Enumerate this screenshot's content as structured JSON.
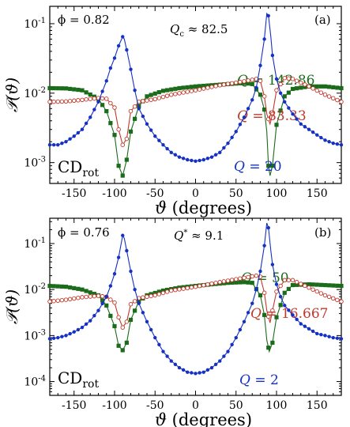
{
  "chart_data": [
    {
      "type": "line",
      "panel_label": "(a)",
      "annotations": {
        "phi": "ϕ = 0.82",
        "q_critical": "Q_c ≈ 82.5",
        "method": "CD_rot"
      },
      "xlabel": "ϑ (degrees)",
      "ylabel": "𝒫(ϑ)",
      "x_ticks": [
        "-150",
        "-100",
        "-50",
        "0",
        "50",
        "100",
        "150"
      ],
      "y_scale": "log",
      "y_tick_labels": [
        {
          "base": "10",
          "exp": "-3"
        },
        {
          "base": "10",
          "exp": "-2"
        },
        {
          "base": "10",
          "exp": "-1"
        }
      ],
      "xlim": [
        -180,
        180
      ],
      "ylim_log10": [
        -3.3,
        -0.75
      ],
      "grid": false,
      "series": [
        {
          "name": "Q = 142.86",
          "color": "#1a6b1a",
          "marker": "square",
          "points": [
            [
              -180,
              0.0118
            ],
            [
              -160,
              0.0117
            ],
            [
              -140,
              0.011
            ],
            [
              -120,
              0.0083
            ],
            [
              -110,
              0.0055
            ],
            [
              -100,
              0.0025
            ],
            [
              -95,
              0.0009
            ],
            [
              -90,
              0.00065
            ],
            [
              -85,
              0.0011
            ],
            [
              -80,
              0.0028
            ],
            [
              -70,
              0.0065
            ],
            [
              -60,
              0.009
            ],
            [
              -40,
              0.0108
            ],
            [
              -20,
              0.0118
            ],
            [
              0,
              0.0125
            ],
            [
              20,
              0.013
            ],
            [
              40,
              0.0135
            ],
            [
              60,
              0.014
            ],
            [
              70,
              0.0135
            ],
            [
              80,
              0.0095
            ],
            [
              85,
              0.0058
            ],
            [
              88,
              0.0028
            ],
            [
              90,
              0.0009
            ],
            [
              92,
              0.00065
            ],
            [
              95,
              0.0009
            ],
            [
              100,
              0.0035
            ],
            [
              110,
              0.009
            ],
            [
              120,
              0.0115
            ],
            [
              140,
              0.0125
            ],
            [
              160,
              0.0125
            ],
            [
              180,
              0.0118
            ]
          ]
        },
        {
          "name": "Q = 83.33",
          "color": "#c0392b",
          "marker": "circle",
          "points": [
            [
              -180,
              0.0075
            ],
            [
              -160,
              0.0076
            ],
            [
              -140,
              0.008
            ],
            [
              -120,
              0.0085
            ],
            [
              -110,
              0.0083
            ],
            [
              -100,
              0.0062
            ],
            [
              -95,
              0.003
            ],
            [
              -90,
              0.0018
            ],
            [
              -85,
              0.0022
            ],
            [
              -80,
              0.0055
            ],
            [
              -70,
              0.0075
            ],
            [
              -50,
              0.0082
            ],
            [
              -30,
              0.0095
            ],
            [
              0,
              0.011
            ],
            [
              30,
              0.013
            ],
            [
              60,
              0.0148
            ],
            [
              75,
              0.016
            ],
            [
              80,
              0.015
            ],
            [
              85,
              0.009
            ],
            [
              88,
              0.005
            ],
            [
              92,
              0.0036
            ],
            [
              95,
              0.005
            ],
            [
              100,
              0.011
            ],
            [
              110,
              0.0165
            ],
            [
              120,
              0.016
            ],
            [
              140,
              0.0125
            ],
            [
              160,
              0.0095
            ],
            [
              180,
              0.0075
            ]
          ]
        },
        {
          "name": "Q = 20",
          "color": "#1530c4",
          "marker": "circle",
          "points": [
            [
              -180,
              0.0018
            ],
            [
              -170,
              0.0018
            ],
            [
              -160,
              0.002
            ],
            [
              -150,
              0.0024
            ],
            [
              -140,
              0.003
            ],
            [
              -130,
              0.0045
            ],
            [
              -120,
              0.0075
            ],
            [
              -110,
              0.015
            ],
            [
              -105,
              0.023
            ],
            [
              -100,
              0.032
            ],
            [
              -95,
              0.048
            ],
            [
              -90,
              0.065
            ],
            [
              -88,
              0.06
            ],
            [
              -85,
              0.042
            ],
            [
              -80,
              0.022
            ],
            [
              -75,
              0.011
            ],
            [
              -70,
              0.006
            ],
            [
              -60,
              0.0036
            ],
            [
              -50,
              0.0024
            ],
            [
              -40,
              0.0018
            ],
            [
              -30,
              0.0014
            ],
            [
              -20,
              0.0012
            ],
            [
              -10,
              0.0011
            ],
            [
              0,
              0.00105
            ],
            [
              10,
              0.0011
            ],
            [
              20,
              0.0012
            ],
            [
              30,
              0.0014
            ],
            [
              40,
              0.0019
            ],
            [
              50,
              0.0028
            ],
            [
              60,
              0.0045
            ],
            [
              70,
              0.008
            ],
            [
              75,
              0.012
            ],
            [
              80,
              0.025
            ],
            [
              85,
              0.06
            ],
            [
              88,
              0.14
            ],
            [
              90,
              0.13
            ],
            [
              93,
              0.065
            ],
            [
              95,
              0.035
            ],
            [
              100,
              0.016
            ],
            [
              105,
              0.01
            ],
            [
              110,
              0.0075
            ],
            [
              120,
              0.005
            ],
            [
              130,
              0.0036
            ],
            [
              140,
              0.003
            ],
            [
              150,
              0.0025
            ],
            [
              160,
              0.0021
            ],
            [
              170,
              0.0019
            ],
            [
              180,
              0.0018
            ]
          ]
        }
      ]
    },
    {
      "type": "line",
      "panel_label": "(b)",
      "annotations": {
        "phi": "ϕ = 0.76",
        "q_star": "Q* ≈ 9.1",
        "method": "CD_rot"
      },
      "xlabel": "ϑ (degrees)",
      "ylabel": "𝒫(ϑ)",
      "x_ticks": [
        "-150",
        "-100",
        "-50",
        "0",
        "50",
        "100",
        "150"
      ],
      "y_scale": "log",
      "y_tick_labels": [
        {
          "base": "10",
          "exp": "-4"
        },
        {
          "base": "10",
          "exp": "-3"
        },
        {
          "base": "10",
          "exp": "-2"
        },
        {
          "base": "10",
          "exp": "-1"
        }
      ],
      "xlim": [
        -180,
        180
      ],
      "ylim_log10": [
        -4.3,
        -0.45
      ],
      "grid": false,
      "series": [
        {
          "name": "Q = 50",
          "color": "#1a6b1a",
          "marker": "square",
          "points": [
            [
              -180,
              0.012
            ],
            [
              -160,
              0.0115
            ],
            [
              -140,
              0.01
            ],
            [
              -120,
              0.0075
            ],
            [
              -110,
              0.0045
            ],
            [
              -100,
              0.0016
            ],
            [
              -95,
              0.0006
            ],
            [
              -90,
              0.00048
            ],
            [
              -85,
              0.0007
            ],
            [
              -80,
              0.0022
            ],
            [
              -70,
              0.0055
            ],
            [
              -60,
              0.0075
            ],
            [
              -40,
              0.0095
            ],
            [
              -20,
              0.011
            ],
            [
              0,
              0.012
            ],
            [
              20,
              0.013
            ],
            [
              40,
              0.014
            ],
            [
              60,
              0.0145
            ],
            [
              70,
              0.014
            ],
            [
              80,
              0.0075
            ],
            [
              85,
              0.0028
            ],
            [
              88,
              0.0008
            ],
            [
              91,
              0.00045
            ],
            [
              95,
              0.0007
            ],
            [
              100,
              0.0025
            ],
            [
              110,
              0.0085
            ],
            [
              120,
              0.0125
            ],
            [
              140,
              0.013
            ],
            [
              160,
              0.0125
            ],
            [
              180,
              0.012
            ]
          ]
        },
        {
          "name": "Q = 16.667",
          "color": "#c0392b",
          "marker": "circle",
          "points": [
            [
              -180,
              0.0055
            ],
            [
              -160,
              0.006
            ],
            [
              -140,
              0.0068
            ],
            [
              -120,
              0.0073
            ],
            [
              -110,
              0.007
            ],
            [
              -100,
              0.0052
            ],
            [
              -95,
              0.0025
            ],
            [
              -90,
              0.0015
            ],
            [
              -85,
              0.002
            ],
            [
              -80,
              0.0048
            ],
            [
              -70,
              0.0065
            ],
            [
              -50,
              0.0075
            ],
            [
              -30,
              0.0095
            ],
            [
              0,
              0.0115
            ],
            [
              30,
              0.0145
            ],
            [
              60,
              0.018
            ],
            [
              75,
              0.02
            ],
            [
              80,
              0.019
            ],
            [
              85,
              0.0085
            ],
            [
              88,
              0.0035
            ],
            [
              92,
              0.0019
            ],
            [
              95,
              0.0035
            ],
            [
              100,
              0.009
            ],
            [
              110,
              0.016
            ],
            [
              120,
              0.016
            ],
            [
              140,
              0.011
            ],
            [
              160,
              0.0075
            ],
            [
              180,
              0.0055
            ]
          ]
        },
        {
          "name": "Q = 2",
          "color": "#1530c4",
          "marker": "circle",
          "points": [
            [
              -180,
              0.00085
            ],
            [
              -170,
              0.0009
            ],
            [
              -160,
              0.001
            ],
            [
              -150,
              0.0012
            ],
            [
              -140,
              0.0015
            ],
            [
              -130,
              0.0021
            ],
            [
              -120,
              0.0035
            ],
            [
              -110,
              0.007
            ],
            [
              -105,
              0.012
            ],
            [
              -100,
              0.022
            ],
            [
              -95,
              0.05
            ],
            [
              -90,
              0.15
            ],
            [
              -88,
              0.13
            ],
            [
              -85,
              0.07
            ],
            [
              -80,
              0.025
            ],
            [
              -75,
              0.01
            ],
            [
              -70,
              0.005
            ],
            [
              -60,
              0.002
            ],
            [
              -50,
              0.0009
            ],
            [
              -40,
              0.00045
            ],
            [
              -30,
              0.00028
            ],
            [
              -20,
              0.0002
            ],
            [
              -10,
              0.00016
            ],
            [
              0,
              0.00015
            ],
            [
              10,
              0.00016
            ],
            [
              20,
              0.0002
            ],
            [
              30,
              0.00028
            ],
            [
              40,
              0.00045
            ],
            [
              50,
              0.0009
            ],
            [
              60,
              0.002
            ],
            [
              70,
              0.005
            ],
            [
              75,
              0.01
            ],
            [
              80,
              0.025
            ],
            [
              85,
              0.09
            ],
            [
              88,
              0.28
            ],
            [
              90,
              0.22
            ],
            [
              93,
              0.07
            ],
            [
              95,
              0.035
            ],
            [
              100,
              0.013
            ],
            [
              105,
              0.007
            ],
            [
              110,
              0.0045
            ],
            [
              120,
              0.0028
            ],
            [
              130,
              0.0018
            ],
            [
              140,
              0.0014
            ],
            [
              150,
              0.0011
            ],
            [
              160,
              0.001
            ],
            [
              170,
              0.0009
            ],
            [
              180,
              0.00085
            ]
          ]
        }
      ]
    }
  ]
}
